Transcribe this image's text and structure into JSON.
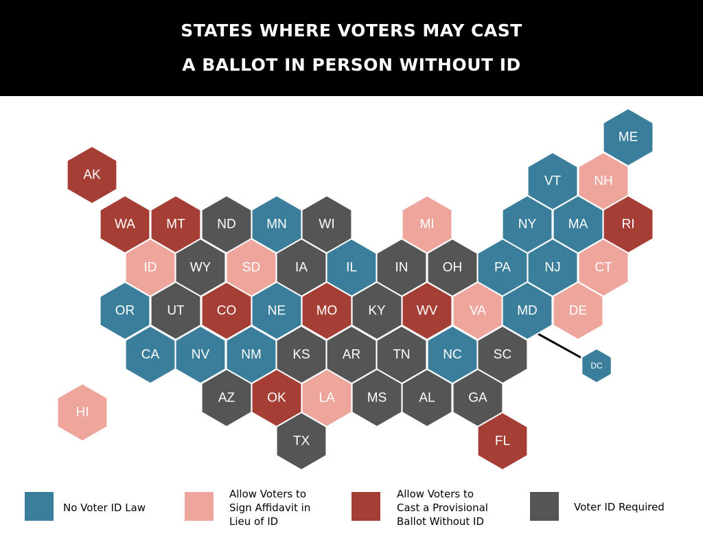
{
  "title": {
    "line1": "STATES WHERE VOTERS MAY CAST",
    "line2": "A BALLOT IN PERSON WITHOUT ID"
  },
  "categories": {
    "no_id": {
      "label": "No Voter ID Law",
      "color": "#3a7e9b"
    },
    "affidavit": {
      "label": "Allow Voters to Sign Affidavit in Lieu of ID",
      "color": "#eea59c"
    },
    "provisional": {
      "label": "Allow Voters to Cast a Provisional Ballot Without ID",
      "color": "#a53f36"
    },
    "required": {
      "label": "Voter ID Required",
      "color": "#555555"
    }
  },
  "legend": [
    {
      "category": "no_id",
      "lines": [
        "No Voter ID Law"
      ]
    },
    {
      "category": "affidavit",
      "lines": [
        "Allow Voters to",
        "Sign Affidavit in",
        "Lieu of ID"
      ]
    },
    {
      "category": "provisional",
      "lines": [
        "Allow Voters to",
        "Cast a Provisional",
        "Ballot Without ID"
      ]
    },
    {
      "category": "required",
      "lines": [
        "Voter ID Required"
      ]
    }
  ],
  "states": [
    {
      "abbr": "ME",
      "category": "no_id"
    },
    {
      "abbr": "AK",
      "category": "provisional"
    },
    {
      "abbr": "VT",
      "category": "no_id"
    },
    {
      "abbr": "NH",
      "category": "affidavit"
    },
    {
      "abbr": "WA",
      "category": "provisional"
    },
    {
      "abbr": "MT",
      "category": "provisional"
    },
    {
      "abbr": "ND",
      "category": "required"
    },
    {
      "abbr": "MN",
      "category": "no_id"
    },
    {
      "abbr": "WI",
      "category": "required"
    },
    {
      "abbr": "MI",
      "category": "affidavit"
    },
    {
      "abbr": "NY",
      "category": "no_id"
    },
    {
      "abbr": "MA",
      "category": "no_id"
    },
    {
      "abbr": "RI",
      "category": "provisional"
    },
    {
      "abbr": "ID",
      "category": "affidavit"
    },
    {
      "abbr": "WY",
      "category": "required"
    },
    {
      "abbr": "SD",
      "category": "affidavit"
    },
    {
      "abbr": "IA",
      "category": "required"
    },
    {
      "abbr": "IL",
      "category": "no_id"
    },
    {
      "abbr": "IN",
      "category": "required"
    },
    {
      "abbr": "OH",
      "category": "required"
    },
    {
      "abbr": "PA",
      "category": "no_id"
    },
    {
      "abbr": "NJ",
      "category": "no_id"
    },
    {
      "abbr": "CT",
      "category": "affidavit"
    },
    {
      "abbr": "OR",
      "category": "no_id"
    },
    {
      "abbr": "UT",
      "category": "required"
    },
    {
      "abbr": "CO",
      "category": "provisional"
    },
    {
      "abbr": "NE",
      "category": "no_id"
    },
    {
      "abbr": "MO",
      "category": "provisional"
    },
    {
      "abbr": "KY",
      "category": "required"
    },
    {
      "abbr": "WV",
      "category": "provisional"
    },
    {
      "abbr": "VA",
      "category": "affidavit"
    },
    {
      "abbr": "MD",
      "category": "no_id"
    },
    {
      "abbr": "DE",
      "category": "affidavit"
    },
    {
      "abbr": "CA",
      "category": "no_id"
    },
    {
      "abbr": "NV",
      "category": "no_id"
    },
    {
      "abbr": "NM",
      "category": "no_id"
    },
    {
      "abbr": "KS",
      "category": "required"
    },
    {
      "abbr": "AR",
      "category": "required"
    },
    {
      "abbr": "TN",
      "category": "required"
    },
    {
      "abbr": "NC",
      "category": "no_id"
    },
    {
      "abbr": "SC",
      "category": "required"
    },
    {
      "abbr": "DC",
      "category": "no_id"
    },
    {
      "abbr": "HI",
      "category": "affidavit"
    },
    {
      "abbr": "AZ",
      "category": "required"
    },
    {
      "abbr": "OK",
      "category": "provisional"
    },
    {
      "abbr": "LA",
      "category": "affidavit"
    },
    {
      "abbr": "MS",
      "category": "required"
    },
    {
      "abbr": "AL",
      "category": "required"
    },
    {
      "abbr": "GA",
      "category": "required"
    },
    {
      "abbr": "TX",
      "category": "required"
    },
    {
      "abbr": "FL",
      "category": "provisional"
    }
  ]
}
